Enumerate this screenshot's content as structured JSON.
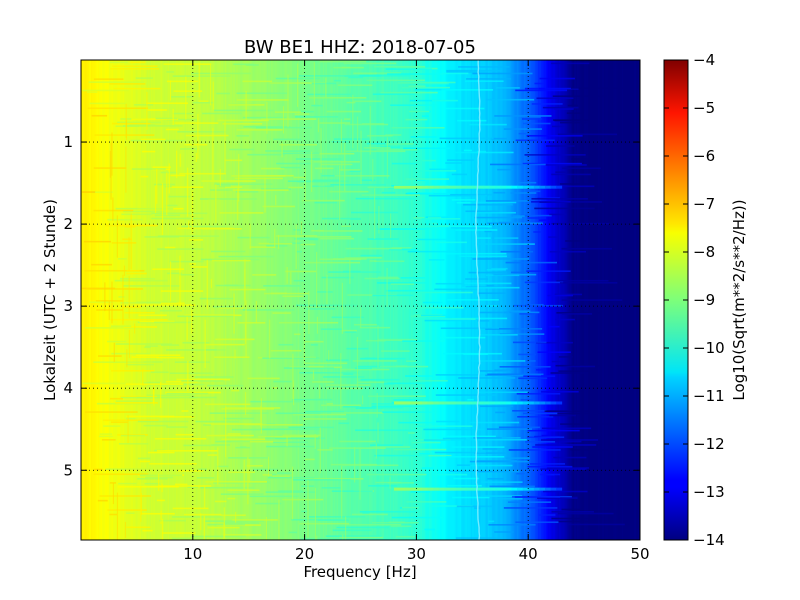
{
  "chart_data": {
    "type": "heatmap",
    "title": "BW BE1 HHZ: 2018-07-05",
    "xlabel": "Frequency [Hz]",
    "ylabel": "Lokalzeit (UTC + 2 Stunde)",
    "xlim": [
      0,
      50
    ],
    "ylim": [
      5.85,
      0
    ],
    "x_ticks": [
      10,
      20,
      30,
      40,
      50
    ],
    "x_tick_labels": [
      "10",
      "20",
      "30",
      "40",
      "50"
    ],
    "y_ticks": [
      1,
      2,
      3,
      4,
      5
    ],
    "y_tick_labels": [
      "1",
      "2",
      "3",
      "4",
      "5"
    ],
    "grid": true,
    "colorbar": {
      "label": "Log10(Sqrt(m**2/s**2/Hz))",
      "range": [
        -14,
        -4
      ],
      "ticks": [
        -4,
        -5,
        -6,
        -7,
        -8,
        -9,
        -10,
        -11,
        -12,
        -13,
        -14
      ],
      "tick_labels": [
        "−4",
        "−5",
        "−6",
        "−7",
        "−8",
        "−9",
        "−10",
        "−11",
        "−12",
        "−13",
        "−14"
      ],
      "colormap": "jet"
    },
    "spectral_profile": {
      "frequency_hz": [
        0,
        3,
        6,
        10,
        14,
        18,
        22,
        26,
        30,
        32,
        34,
        36,
        38,
        40,
        41,
        42,
        43,
        44,
        46,
        50
      ],
      "level": [
        -7.6,
        -7.9,
        -8.2,
        -8.3,
        -8.6,
        -8.9,
        -9.2,
        -9.5,
        -9.8,
        -10.2,
        -10.5,
        -10.7,
        -11.0,
        -11.8,
        -12.3,
        -12.9,
        -13.4,
        -13.9,
        -14.0,
        -14.0
      ]
    },
    "spectral_line_hz": 35.5,
    "horizontal_bands_hours": [
      1.55,
      4.18,
      5.23
    ]
  }
}
